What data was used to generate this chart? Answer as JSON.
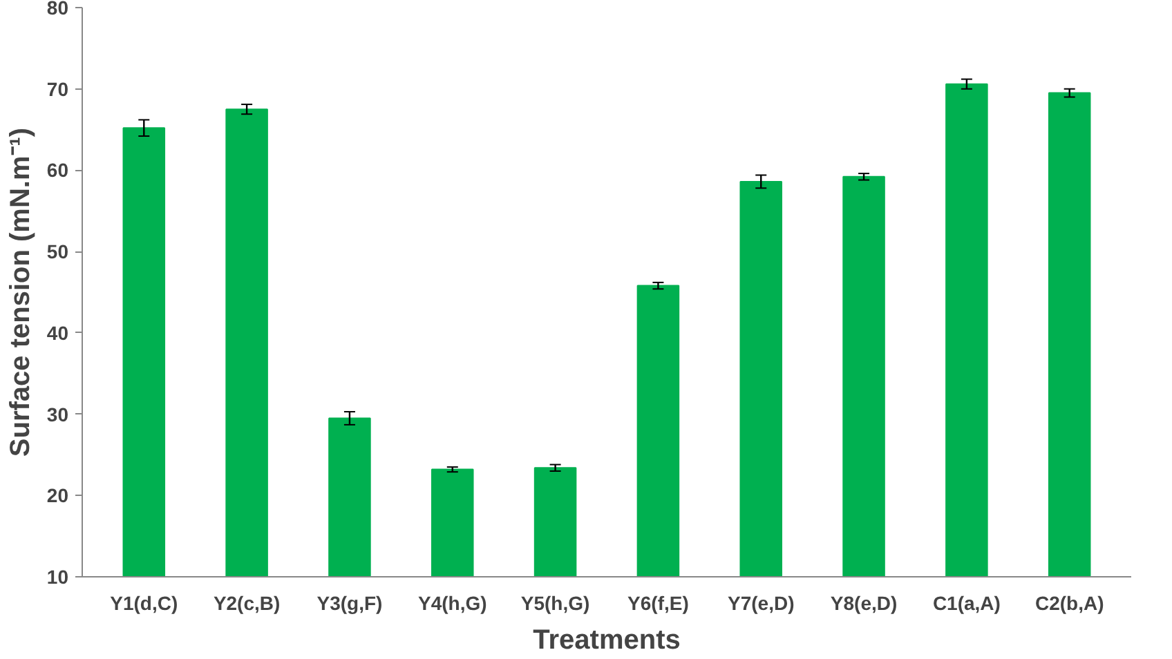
{
  "chart_data": {
    "type": "bar",
    "xlabel": "Treatments",
    "ylabel": "Surface tension (mN.m⁻¹)",
    "categories": [
      "Y1(d,C)",
      "Y2(c,B)",
      "Y3(g,F)",
      "Y4(h,G)",
      "Y5(h,G)",
      "Y6(f,E)",
      "Y7(e,D)",
      "Y8(e,D)",
      "C1(a,A)",
      "C2(b,A)"
    ],
    "values": [
      65.2,
      67.5,
      29.5,
      23.2,
      23.4,
      45.8,
      58.6,
      59.2,
      70.6,
      69.5
    ],
    "errors": [
      1.0,
      0.6,
      0.8,
      0.3,
      0.4,
      0.4,
      0.8,
      0.4,
      0.6,
      0.5
    ],
    "color": "#00b050",
    "ylim": [
      10,
      80
    ],
    "yticks": [
      10,
      20,
      30,
      40,
      50,
      60,
      70,
      80
    ],
    "grid": false
  }
}
